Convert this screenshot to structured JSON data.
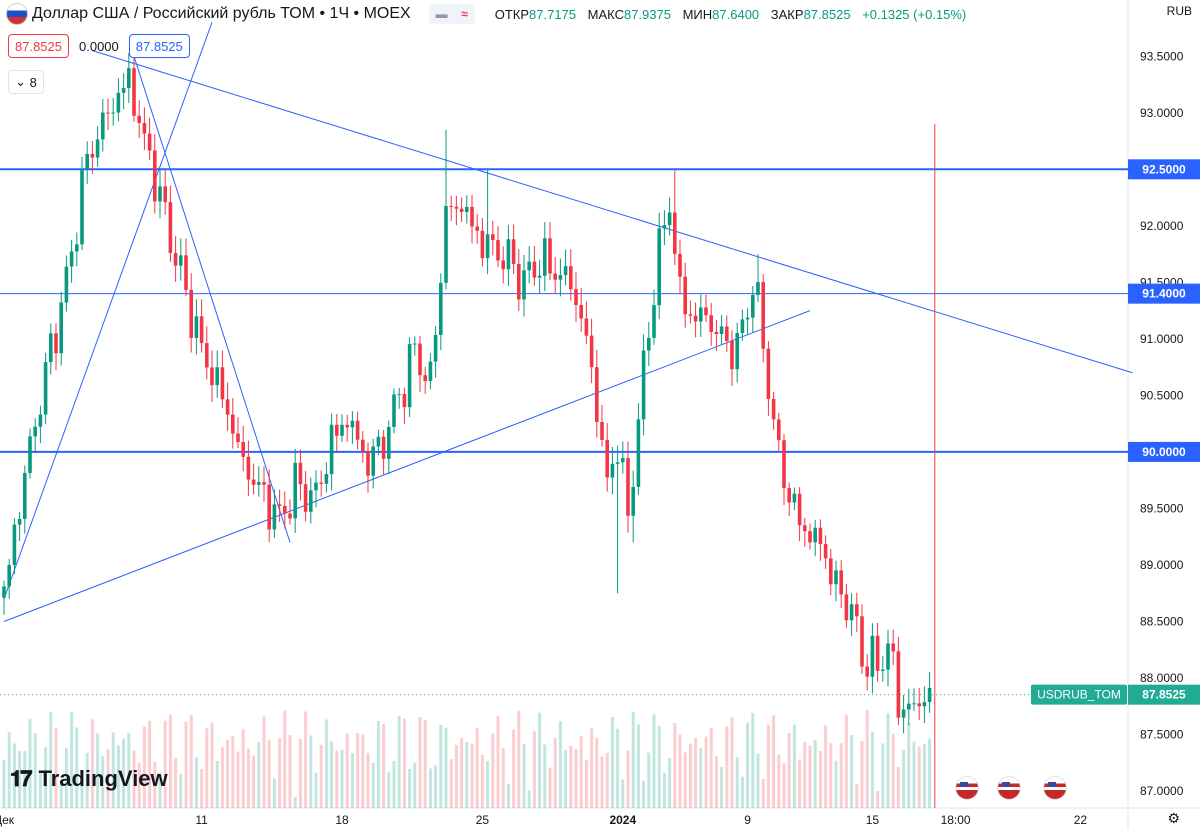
{
  "header": {
    "title": "Доллар США / Российский рубль ТОМ • 1Ч • MOEX",
    "ohlc": [
      {
        "label": "ОТКР",
        "value": "87.7175"
      },
      {
        "label": "МАКС",
        "value": "87.9375"
      },
      {
        "label": "МИН",
        "value": "87.6400"
      },
      {
        "label": "ЗАКР",
        "value": "87.8525"
      }
    ],
    "change": "+0.1325 (+0.15%)",
    "currency": "RUB",
    "collapse_count": "8"
  },
  "legend_values": [
    "87.8525",
    "0.0000",
    "87.8525"
  ],
  "logo": "TradingView",
  "colors": {
    "up": "#089981",
    "down": "#f23645",
    "line": "#2962ff",
    "ticker_label": "#22ab94"
  },
  "icons": [
    "flag-icon",
    "chevron-down-icon",
    "gear-icon",
    "tradingview-logo-icon",
    "economic-event-icon"
  ],
  "chart_data": {
    "type": "candlestick",
    "symbol_label": "USDRUB_TOM",
    "last_price": "87.8525",
    "y_ticks": [
      "93.5000",
      "93.0000",
      "92.5000",
      "92.0000",
      "91.5000",
      "91.0000",
      "90.5000",
      "90.0000",
      "89.5000",
      "89.0000",
      "88.5000",
      "88.0000",
      "87.5000",
      "87.0000"
    ],
    "ylim": [
      86.85,
      93.75
    ],
    "x_ticks": [
      {
        "label": "Дек",
        "idx": 0
      },
      {
        "label": "11",
        "idx": 38
      },
      {
        "label": "18",
        "idx": 65
      },
      {
        "label": "25",
        "idx": 92
      },
      {
        "label": "2024",
        "idx": 119
      },
      {
        "label": "9",
        "idx": 143
      },
      {
        "label": "15",
        "idx": 167
      },
      {
        "label": "18:00",
        "idx": 183
      },
      {
        "label": "22",
        "idx": 207
      }
    ],
    "horizontal_levels": [
      {
        "value": 92.5,
        "label": "92.5000",
        "width": 2
      },
      {
        "value": 91.4,
        "label": "91.4000",
        "width": 1
      },
      {
        "value": 90.0,
        "label": "90.0000",
        "width": 2
      }
    ],
    "trendlines": [
      {
        "from": [
          17,
          93.55
        ],
        "to": [
          217,
          90.7
        ]
      },
      {
        "from": [
          0,
          88.5
        ],
        "to": [
          155,
          91.25
        ]
      },
      {
        "from": [
          25,
          93.5
        ],
        "to": [
          55,
          89.2
        ]
      },
      {
        "from": [
          0,
          88.7
        ],
        "to": [
          40,
          93.8
        ]
      }
    ],
    "vertical_marker_idx": 179,
    "close_path": [
      [
        0,
        88.75
      ],
      [
        4,
        89.8
      ],
      [
        8,
        90.7
      ],
      [
        12,
        91.5
      ],
      [
        16,
        92.6
      ],
      [
        20,
        93.0
      ],
      [
        24,
        93.3
      ],
      [
        26,
        92.9
      ],
      [
        28,
        92.6
      ],
      [
        32,
        91.9
      ],
      [
        35,
        91.4
      ],
      [
        38,
        90.9
      ],
      [
        42,
        90.5
      ],
      [
        46,
        89.9
      ],
      [
        50,
        89.6
      ],
      [
        53,
        89.4
      ],
      [
        56,
        89.7
      ],
      [
        60,
        89.6
      ],
      [
        63,
        90.1
      ],
      [
        66,
        90.3
      ],
      [
        70,
        89.9
      ],
      [
        73,
        90.1
      ],
      [
        76,
        90.5
      ],
      [
        79,
        90.9
      ],
      [
        82,
        90.6
      ],
      [
        85,
        92.1
      ],
      [
        88,
        92.2
      ],
      [
        91,
        91.9
      ],
      [
        94,
        91.8
      ],
      [
        97,
        91.7
      ],
      [
        100,
        91.5
      ],
      [
        103,
        91.7
      ],
      [
        106,
        91.6
      ],
      [
        109,
        91.5
      ],
      [
        112,
        91.0
      ],
      [
        114,
        90.4
      ],
      [
        116,
        89.7
      ],
      [
        118,
        90.1
      ],
      [
        120,
        89.4
      ],
      [
        122,
        90.3
      ],
      [
        124,
        91.1
      ],
      [
        126,
        91.8
      ],
      [
        128,
        92.2
      ],
      [
        130,
        91.4
      ],
      [
        132,
        91.2
      ],
      [
        135,
        91.2
      ],
      [
        138,
        91.0
      ],
      [
        141,
        90.9
      ],
      [
        144,
        91.5
      ],
      [
        146,
        91.0
      ],
      [
        148,
        90.2
      ],
      [
        151,
        89.6
      ],
      [
        154,
        89.3
      ],
      [
        157,
        89.2
      ],
      [
        160,
        88.8
      ],
      [
        163,
        88.6
      ],
      [
        165,
        88.2
      ],
      [
        168,
        88.1
      ],
      [
        170,
        88.3
      ],
      [
        172,
        87.8
      ],
      [
        174,
        87.7
      ],
      [
        176,
        87.8
      ],
      [
        178,
        87.85
      ]
    ],
    "spikes": [
      {
        "idx": 85,
        "high": 92.85
      },
      {
        "idx": 93,
        "high": 92.5
      },
      {
        "idx": 118,
        "low": 88.75
      },
      {
        "idx": 129,
        "high": 92.5
      },
      {
        "idx": 145,
        "high": 91.75
      },
      {
        "idx": 121,
        "low": 89.2
      }
    ],
    "event_idx": [
      185,
      193,
      202
    ]
  }
}
